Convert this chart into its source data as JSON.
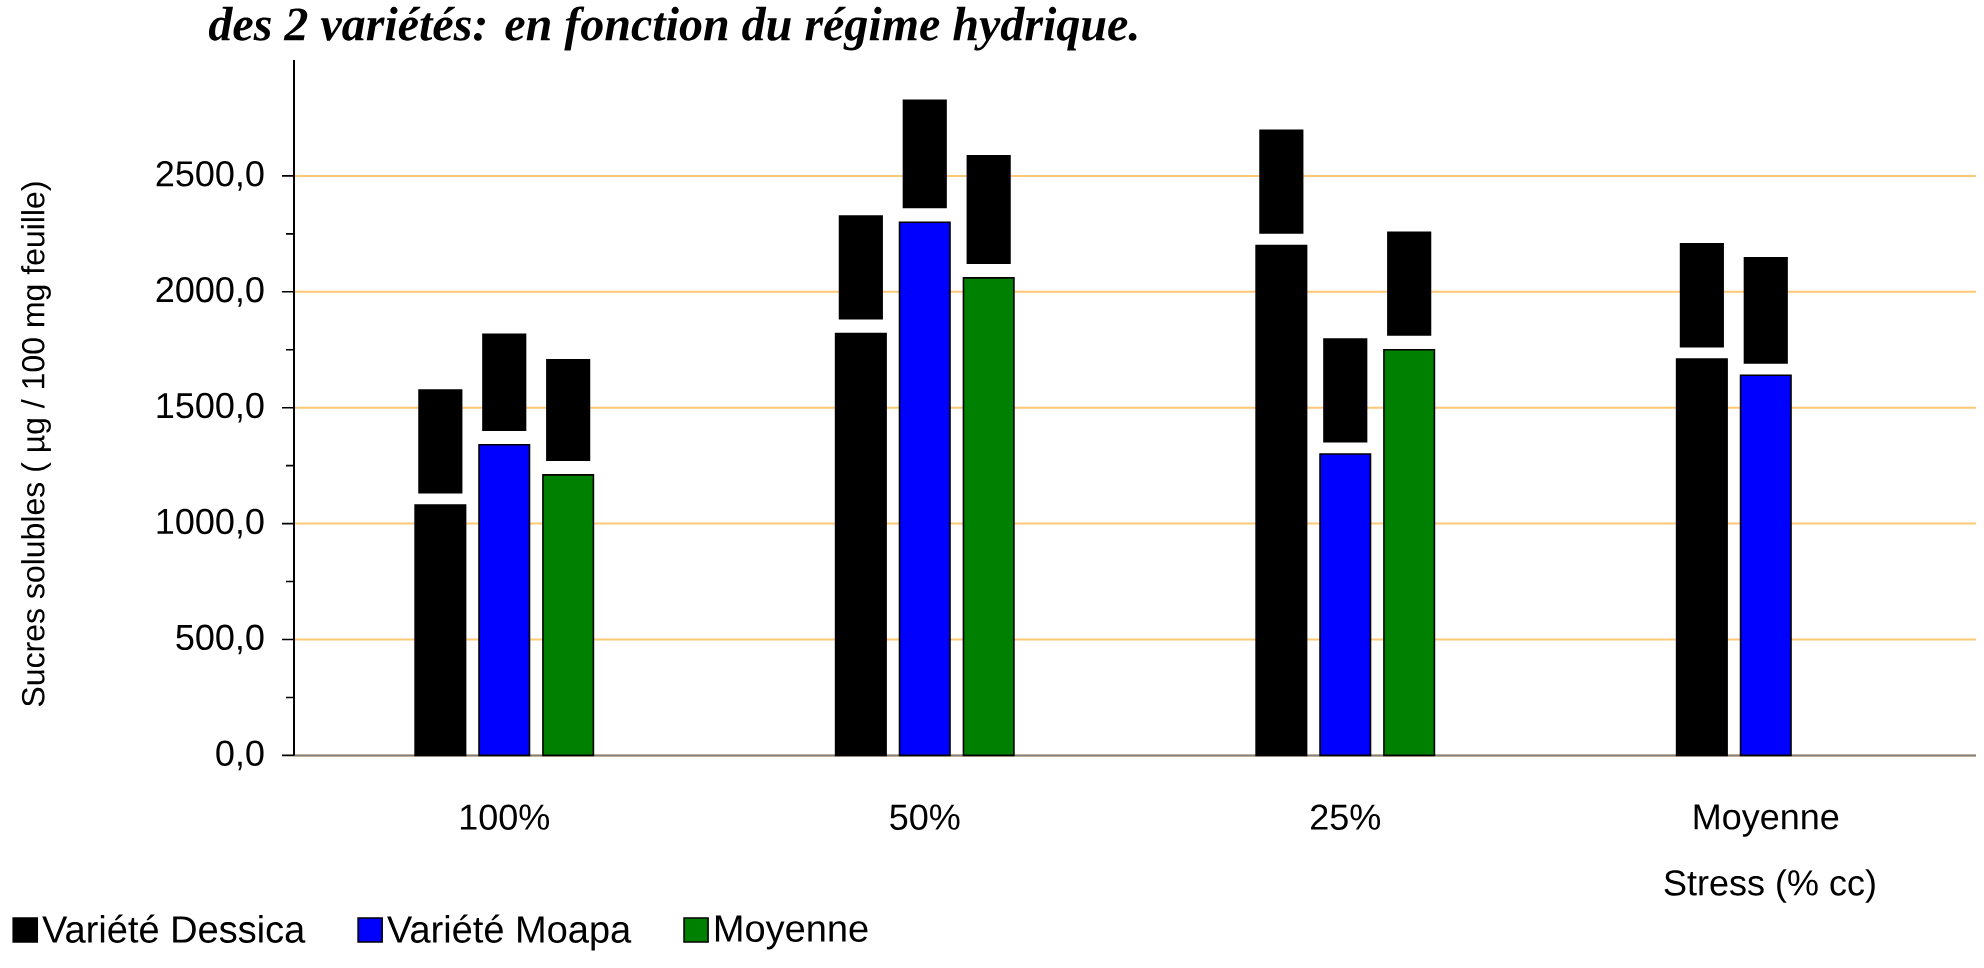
{
  "chart_data": {
    "type": "bar",
    "title": "des 2 variétés: en fonction du régime hydrique.",
    "xlabel": "Stress (% cc)",
    "ylabel": "Sucres solubles ( µg / 100 mg feuille)",
    "categories": [
      "100%",
      "50%",
      "25%",
      "Moyenne"
    ],
    "series": [
      {
        "name": "Variété Dessica",
        "color": "#000000",
        "values": [
          1080,
          1820,
          2200,
          1710
        ],
        "errors": [
          [
            1130,
            1580
          ],
          [
            1880,
            2330
          ],
          [
            2250,
            2700
          ],
          [
            1760,
            2210
          ]
        ]
      },
      {
        "name": "Variété Moapa",
        "color": "#0000ff",
        "values": [
          1340,
          2300,
          1300,
          1640
        ],
        "errors": [
          [
            1400,
            1820
          ],
          [
            2360,
            2830
          ],
          [
            1350,
            1800
          ],
          [
            1690,
            2150
          ]
        ]
      },
      {
        "name": "Moyenne",
        "color": "#008000",
        "values": [
          1210,
          2060,
          1750,
          null
        ],
        "errors": [
          [
            1270,
            1710
          ],
          [
            2120,
            2590
          ],
          [
            1810,
            2260
          ],
          null
        ]
      }
    ],
    "ylim": [
      0,
      3000
    ],
    "yticks": [
      {
        "value": 0,
        "label": "0,0"
      },
      {
        "value": 500,
        "label": "500,0"
      },
      {
        "value": 1000,
        "label": "1000,0"
      },
      {
        "value": 1500,
        "label": "1500,0"
      },
      {
        "value": 2000,
        "label": "2000,0"
      },
      {
        "value": 2500,
        "label": "2500,0"
      }
    ],
    "grid": "y",
    "legend": "bottom"
  }
}
